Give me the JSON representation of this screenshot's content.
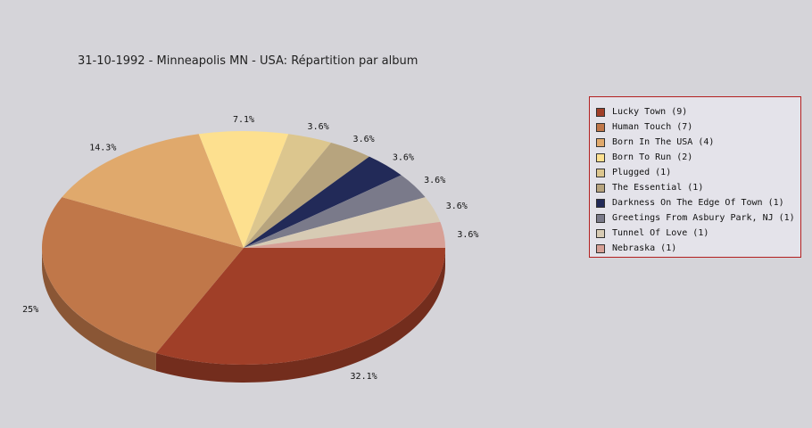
{
  "chart_data": {
    "type": "pie",
    "title": "31-10-1992 - Minneapolis MN - USA:  Répartition par album",
    "legend_position": "right",
    "slices": [
      {
        "label": "Lucky Town (9)",
        "value": 9,
        "pct": "32.1%",
        "color": "#a03f28"
      },
      {
        "label": "Human Touch (7)",
        "value": 7,
        "pct": "25%",
        "color": "#c07749"
      },
      {
        "label": "Born In The USA (4)",
        "value": 4,
        "pct": "14.3%",
        "color": "#e0a96c"
      },
      {
        "label": "Born To Run (2)",
        "value": 2,
        "pct": "7.1%",
        "color": "#fde08f"
      },
      {
        "label": "Plugged (1)",
        "value": 1,
        "pct": "3.6%",
        "color": "#dcc68e"
      },
      {
        "label": "The Essential (1)",
        "value": 1,
        "pct": "3.6%",
        "color": "#b7a47e"
      },
      {
        "label": "Darkness On The Edge Of Town (1)",
        "value": 1,
        "pct": "3.6%",
        "color": "#222a58"
      },
      {
        "label": "Greetings From Asbury Park, NJ (1)",
        "value": 1,
        "pct": "3.6%",
        "color": "#7a7a8a"
      },
      {
        "label": "Tunnel Of Love (1)",
        "value": 1,
        "pct": "3.6%",
        "color": "#d7cbb4"
      },
      {
        "label": "Nebraska (1)",
        "value": 1,
        "pct": "3.6%",
        "color": "#d7a096"
      }
    ]
  }
}
